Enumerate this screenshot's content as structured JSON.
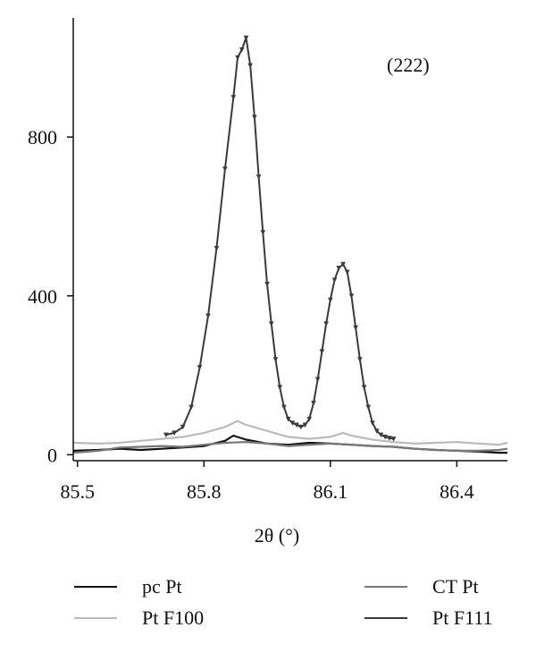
{
  "chart_data": {
    "type": "line",
    "title": "",
    "annotation": "(222)",
    "xlabel": "2θ (°)",
    "ylabel": "",
    "xlim": [
      85.49,
      86.52
    ],
    "ylim": [
      -15,
      1100
    ],
    "x_ticks": [
      85.5,
      85.8,
      86.1,
      86.4
    ],
    "y_ticks": [
      0,
      400,
      800
    ],
    "x_tick_labels": [
      "85.5",
      "85.8",
      "86.1",
      "86.4"
    ],
    "y_tick_labels": [
      "0",
      "400",
      "800"
    ],
    "grid": false,
    "legend_position": "bottom",
    "series": [
      {
        "name": "pc Pt",
        "color": "#111111",
        "marker": "none",
        "x": [
          85.49,
          85.55,
          85.6,
          85.65,
          85.7,
          85.75,
          85.8,
          85.85,
          85.87,
          85.9,
          85.95,
          86.0,
          86.05,
          86.1,
          86.15,
          86.2,
          86.25,
          86.3,
          86.35,
          86.4,
          86.45,
          86.5,
          86.52
        ],
        "y": [
          10,
          12,
          15,
          12,
          15,
          18,
          22,
          35,
          48,
          38,
          28,
          25,
          30,
          28,
          25,
          22,
          20,
          15,
          12,
          10,
          8,
          5,
          5
        ]
      },
      {
        "name": "CT Pt",
        "color": "#777777",
        "marker": "none",
        "x": [
          85.49,
          85.55,
          85.6,
          85.65,
          85.7,
          85.75,
          85.8,
          85.85,
          85.9,
          85.95,
          86.0,
          86.05,
          86.1,
          86.15,
          86.2,
          86.25,
          86.3,
          86.35,
          86.4,
          86.45,
          86.5,
          86.52
        ],
        "y": [
          5,
          10,
          18,
          20,
          22,
          20,
          25,
          30,
          32,
          28,
          22,
          25,
          28,
          25,
          22,
          20,
          15,
          12,
          10,
          10,
          12,
          15
        ]
      },
      {
        "name": "Pt F100",
        "color": "#bbbbbb",
        "marker": "none",
        "x": [
          85.49,
          85.55,
          85.6,
          85.65,
          85.7,
          85.75,
          85.8,
          85.85,
          85.88,
          85.9,
          85.95,
          86.0,
          86.05,
          86.1,
          86.13,
          86.15,
          86.2,
          86.25,
          86.3,
          86.35,
          86.4,
          86.45,
          86.5,
          86.52
        ],
        "y": [
          30,
          28,
          30,
          35,
          40,
          45,
          55,
          70,
          85,
          75,
          60,
          45,
          40,
          45,
          55,
          48,
          38,
          32,
          28,
          30,
          32,
          28,
          25,
          30
        ]
      },
      {
        "name": "Pt F111",
        "color": "#3a3a3a",
        "marker": "triangle-down",
        "x": [
          85.71,
          85.73,
          85.75,
          85.77,
          85.79,
          85.81,
          85.83,
          85.85,
          85.87,
          85.88,
          85.89,
          85.9,
          85.91,
          85.92,
          85.93,
          85.94,
          85.95,
          85.96,
          85.97,
          85.98,
          85.99,
          86.0,
          86.01,
          86.02,
          86.03,
          86.04,
          86.05,
          86.06,
          86.07,
          86.08,
          86.09,
          86.1,
          86.11,
          86.12,
          86.13,
          86.14,
          86.15,
          86.16,
          86.17,
          86.18,
          86.19,
          86.2,
          86.21,
          86.22,
          86.23,
          86.24,
          86.25
        ],
        "y": [
          50,
          55,
          70,
          120,
          220,
          350,
          520,
          720,
          900,
          1000,
          1020,
          1050,
          980,
          850,
          700,
          560,
          430,
          330,
          240,
          170,
          120,
          90,
          80,
          75,
          70,
          75,
          90,
          130,
          190,
          260,
          330,
          390,
          440,
          470,
          480,
          460,
          400,
          320,
          240,
          170,
          120,
          80,
          60,
          50,
          45,
          42,
          40
        ]
      }
    ]
  }
}
